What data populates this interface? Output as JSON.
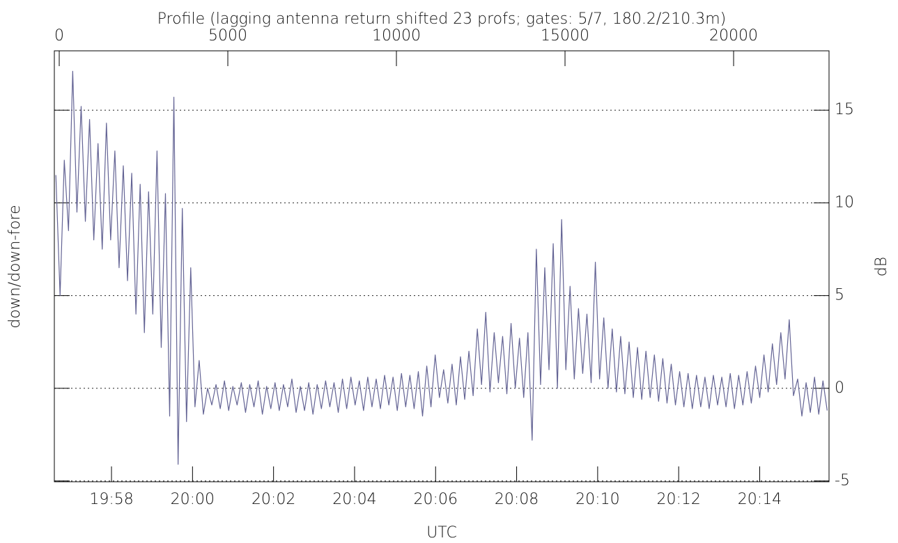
{
  "chart_data": {
    "type": "line",
    "title": "Profile (lagging antenna return shifted 23 profs; gates: 5/7, 180.2/210.3m)",
    "xlabel": "UTC",
    "ylabel": "down/down-fore",
    "y2label": "dB",
    "xlim": [
      -145,
      22830
    ],
    "ylim": [
      -5.04,
      18.2
    ],
    "xticks": [
      0,
      5000,
      10000,
      15000,
      20000
    ],
    "x2ticks": [
      {
        "value": 1550,
        "label": "19:58"
      },
      {
        "value": 3953,
        "label": "20:00"
      },
      {
        "value": 6356,
        "label": "20:02"
      },
      {
        "value": 8759,
        "label": "20:04"
      },
      {
        "value": 11162,
        "label": "20:06"
      },
      {
        "value": 13565,
        "label": "20:08"
      },
      {
        "value": 15968,
        "label": "20:10"
      },
      {
        "value": 18371,
        "label": "20:12"
      },
      {
        "value": 20774,
        "label": "20:14"
      }
    ],
    "yticks": [
      -5,
      0,
      5,
      10,
      15
    ],
    "grid": true,
    "x": [
      -100,
      25,
      150,
      275,
      400,
      525,
      650,
      775,
      900,
      1025,
      1150,
      1275,
      1400,
      1525,
      1650,
      1775,
      1900,
      2025,
      2150,
      2275,
      2400,
      2525,
      2650,
      2775,
      2900,
      3025,
      3150,
      3275,
      3400,
      3525,
      3650,
      3775,
      3900,
      4025,
      4150,
      4275,
      4400,
      4525,
      4650,
      4775,
      4900,
      5025,
      5150,
      5275,
      5400,
      5525,
      5650,
      5775,
      5900,
      6025,
      6150,
      6275,
      6400,
      6525,
      6650,
      6775,
      6900,
      7025,
      7150,
      7275,
      7400,
      7525,
      7650,
      7775,
      7900,
      8025,
      8150,
      8275,
      8400,
      8525,
      8650,
      8775,
      8900,
      9025,
      9150,
      9275,
      9400,
      9525,
      9650,
      9775,
      9900,
      10025,
      10150,
      10275,
      10400,
      10525,
      10650,
      10775,
      10900,
      11025,
      11150,
      11275,
      11400,
      11525,
      11650,
      11775,
      11900,
      12025,
      12150,
      12275,
      12400,
      12525,
      12650,
      12775,
      12900,
      13025,
      13150,
      13275,
      13400,
      13525,
      13650,
      13775,
      13900,
      14025,
      14150,
      14275,
      14400,
      14525,
      14650,
      14775,
      14900,
      15025,
      15150,
      15275,
      15400,
      15525,
      15650,
      15775,
      15900,
      16025,
      16150,
      16275,
      16400,
      16525,
      16650,
      16775,
      16900,
      17025,
      17150,
      17275,
      17400,
      17525,
      17650,
      17775,
      17900,
      18025,
      18150,
      18275,
      18400,
      18525,
      18650,
      18775,
      18900,
      19025,
      19150,
      19275,
      19400,
      19525,
      19650,
      19775,
      19900,
      20025,
      20150,
      20275,
      20400,
      20525,
      20650,
      20775,
      20900,
      21025,
      21150,
      21275,
      21400,
      21525,
      21650,
      21775,
      21900,
      22025,
      22150,
      22275,
      22400,
      22525,
      22650,
      22775
    ],
    "series": [
      {
        "color": "#636394",
        "values": [
          11.5,
          5,
          12.3,
          8.5,
          17.1,
          9.5,
          15.2,
          9,
          14.5,
          8,
          13.2,
          7.5,
          14.3,
          8,
          12.8,
          6.5,
          12,
          5.8,
          11.6,
          4,
          11,
          3,
          10.6,
          4,
          12.8,
          2.2,
          10.5,
          -1.5,
          15.7,
          -4.1,
          9.7,
          -1.8,
          6.5,
          -1,
          1.5,
          -1.4,
          0,
          -0.9,
          0.2,
          -1.1,
          0.4,
          -1.2,
          0.1,
          -0.9,
          0.3,
          -1.3,
          0.2,
          -1.0,
          0.4,
          -1.4,
          0.1,
          -1.1,
          0.3,
          -1.2,
          0.2,
          -1.0,
          0.5,
          -1.3,
          0.1,
          -1.2,
          0.3,
          -1.4,
          0.2,
          -1.1,
          0.4,
          -1.0,
          0.3,
          -1.3,
          0.5,
          -1.1,
          0.6,
          -0.9,
          0.4,
          -1.2,
          0.6,
          -1.0,
          0.5,
          -1.1,
          0.7,
          -0.9,
          0.6,
          -1.2,
          0.8,
          -1.0,
          0.7,
          -1.1,
          0.9,
          -1.5,
          1.2,
          -1.0,
          1.8,
          -0.5,
          1.0,
          -0.8,
          1.3,
          -0.9,
          1.7,
          -0.6,
          2.0,
          -0.4,
          3.2,
          0.2,
          4.1,
          -0.2,
          3.0,
          0.3,
          2.8,
          -0.3,
          3.5,
          0,
          2.7,
          -0.5,
          3.0,
          -2.8,
          7.5,
          0.2,
          6.5,
          1.0,
          7.8,
          0,
          9.1,
          1.0,
          5.5,
          0.5,
          4.3,
          0.8,
          4.0,
          0.3,
          6.8,
          0.5,
          3.8,
          0,
          3.2,
          -0.2,
          2.8,
          -0.3,
          2.5,
          -0.5,
          2.2,
          -0.6,
          2.0,
          -0.5,
          1.8,
          -0.7,
          1.6,
          -0.8,
          1.3,
          -0.9,
          0.9,
          -1.0,
          0.8,
          -1.1,
          0.7,
          -1.0,
          0.6,
          -1.1,
          0.7,
          -0.9,
          0.6,
          -1.0,
          0.8,
          -1.1,
          0.7,
          -0.9,
          0.9,
          -0.8,
          1.2,
          -0.5,
          1.8,
          -0.2,
          2.4,
          0.2,
          3.0,
          0.5,
          3.7,
          -0.4,
          0.5,
          -1.5,
          0.3,
          -1.3,
          0.6,
          -1.4,
          0.4,
          -1.2
        ]
      }
    ]
  }
}
